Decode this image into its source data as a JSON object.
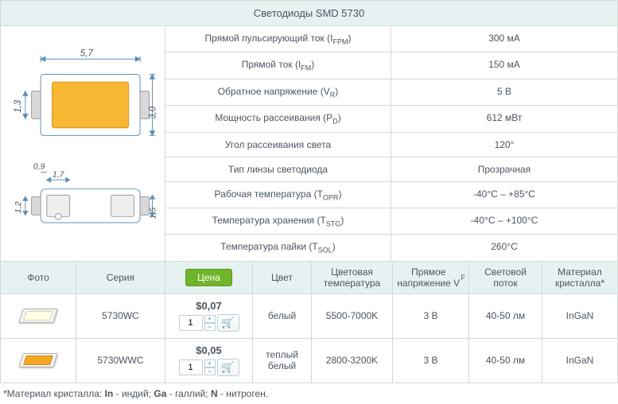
{
  "title": "Светодиоды SMD 5730",
  "diagram": {
    "top": {
      "width": "5,7",
      "height": "3,0",
      "left_gap": "1,3"
    },
    "bottom": {
      "pad_w": "1,7",
      "gap": "0,9",
      "height": "1,5",
      "left": "1,2"
    },
    "fill_color": "#f7b733",
    "line_color": "#5b8fb9"
  },
  "specs": [
    {
      "label_html": "Прямой пульсирующий ток (I<sub>FPM</sub>)",
      "value": "300 мА"
    },
    {
      "label_html": "Прямой ток (I<sub>FM</sub>)",
      "value": "150 мА"
    },
    {
      "label_html": "Обратное напряжение (V<sub>R</sub>)",
      "value": "5 В"
    },
    {
      "label_html": "Мощность рассеивания (P<sub>D</sub>)",
      "value": "612 мВт"
    },
    {
      "label_html": "Угол рассеивания света",
      "value": "120°"
    },
    {
      "label_html": "Тип линзы светодиода",
      "value": "Прозрачная"
    },
    {
      "label_html": "Рабочая температура (T<sub>OPR</sub>)",
      "value": "-40°C – +85°C"
    },
    {
      "label_html": "Температура хранения (T<sub>STG</sub>)",
      "value": "-40°C – +100°C"
    },
    {
      "label_html": "Температура пайки (T<sub>SOL</sub>)",
      "value": "260°C"
    }
  ],
  "table": {
    "headers": {
      "photo": "Фото",
      "series": "Серия",
      "price_btn": "Цена",
      "color": "Цвет",
      "temp": "Цветовая температура",
      "vf_html": "Прямое напряжение V<sub>F</sub>",
      "flux": "Световой поток",
      "material": "Материал кристалла*"
    },
    "rows": [
      {
        "thumb_class": "led-white",
        "series": "5730WC",
        "price": "$0,07",
        "qty": "1",
        "color": "белый",
        "temp": "5500-7000K",
        "vf": "3 В",
        "flux": "40-50 лм",
        "material": "InGaN"
      },
      {
        "thumb_class": "led-warm",
        "series": "5730WWC",
        "price": "$0,05",
        "qty": "1",
        "color": "теплый белый",
        "temp": "2800-3200K",
        "vf": "3 В",
        "flux": "40-50 лм",
        "material": "InGaN"
      }
    ]
  },
  "footnote_html": "*Материал кристалла: <b>In</b> - индий; <b>Ga</b> - галлий; <b>N</b> - нитроген."
}
